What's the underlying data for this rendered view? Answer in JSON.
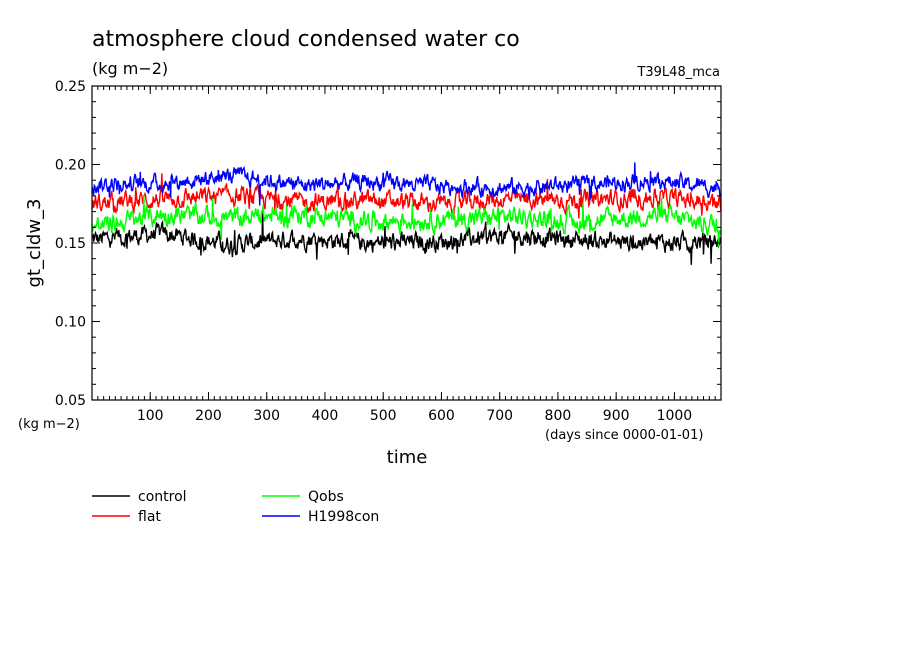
{
  "chart_data": {
    "type": "line",
    "title": "atmosphere cloud condensed water co",
    "units": "(kg m−2)",
    "top_right_label": "T39L48_mca",
    "ylabel": "gt_cldw_3",
    "y_units_label": "(kg m−2)",
    "xlabel": "time",
    "x_units_label": "(days since 0000-01-01)",
    "xlim": [
      0,
      1080
    ],
    "ylim": [
      0.05,
      0.25
    ],
    "x_ticks": [
      100,
      200,
      300,
      400,
      500,
      600,
      700,
      800,
      900,
      1000
    ],
    "x_tick_labels": [
      "100",
      "200",
      "300",
      "400",
      "500",
      "600",
      "700",
      "800",
      "900",
      "1000"
    ],
    "y_ticks": [
      0.05,
      0.1,
      0.15,
      0.2,
      0.25
    ],
    "y_tick_labels": [
      "0.05",
      "0.10",
      "0.15",
      "0.20",
      "0.25"
    ],
    "grid": false,
    "legend_position": "bottom-left, below plot",
    "series": [
      {
        "name": "control",
        "color": "#000000",
        "mean": 0.152,
        "amplitude": 0.01,
        "x": [
          0,
          120,
          240,
          360,
          480,
          600,
          720,
          840,
          960,
          1080
        ],
        "values": [
          0.152,
          0.156,
          0.149,
          0.153,
          0.15,
          0.151,
          0.155,
          0.152,
          0.15,
          0.151
        ]
      },
      {
        "name": "flat",
        "color": "#ff0000",
        "mean": 0.176,
        "amplitude": 0.01,
        "x": [
          0,
          120,
          240,
          360,
          480,
          600,
          720,
          840,
          960,
          1080
        ],
        "values": [
          0.175,
          0.178,
          0.18,
          0.176,
          0.177,
          0.175,
          0.178,
          0.177,
          0.179,
          0.176
        ]
      },
      {
        "name": "Qobs",
        "color": "#00ff00",
        "mean": 0.165,
        "amplitude": 0.011,
        "x": [
          0,
          120,
          240,
          360,
          480,
          600,
          720,
          840,
          960,
          1080
        ],
        "values": [
          0.16,
          0.168,
          0.166,
          0.168,
          0.164,
          0.165,
          0.167,
          0.163,
          0.168,
          0.161
        ]
      },
      {
        "name": "H1998con",
        "color": "#0000ff",
        "mean": 0.186,
        "amplitude": 0.009,
        "x": [
          0,
          120,
          240,
          360,
          480,
          600,
          720,
          840,
          960,
          1080
        ],
        "values": [
          0.187,
          0.188,
          0.193,
          0.187,
          0.189,
          0.186,
          0.185,
          0.187,
          0.19,
          0.185
        ]
      }
    ]
  }
}
